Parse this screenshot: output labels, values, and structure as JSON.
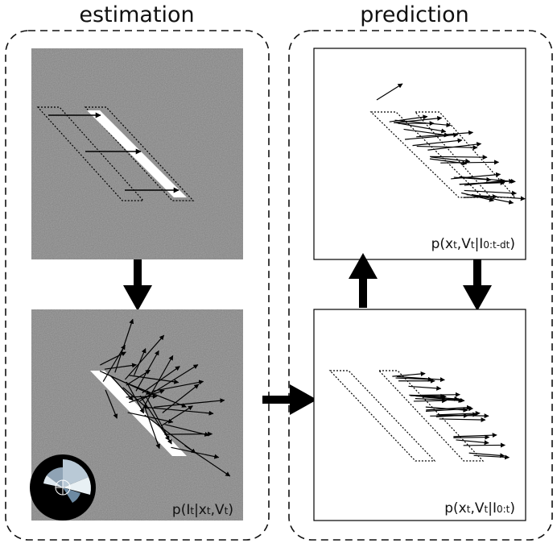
{
  "headings": {
    "left": "estimation",
    "right": "prediction"
  },
  "panels": {
    "estimation_bottom": {
      "label_main": "p(I",
      "label_sub": "t",
      "label_rest": "|x",
      "label_sub2": "t",
      "label_tail": ",V",
      "label_sub3": "t",
      "label_end": ")"
    },
    "prediction_top": {
      "label_main": "p(x",
      "label_sub": "t",
      "label_rest": ",V",
      "label_sub2": "t",
      "label_tail": "|I",
      "label_sub3": "0:t-dt",
      "label_end": ")"
    },
    "prediction_bottom": {
      "label_main": "p(x",
      "label_sub": "t",
      "label_rest": ",V",
      "label_sub2": "t",
      "label_tail": "|I",
      "label_sub3": "0:t",
      "label_end": ")"
    }
  },
  "colors": {
    "noise_gray": "#808080",
    "bar": "#ffffff",
    "arrow": "#000000"
  }
}
